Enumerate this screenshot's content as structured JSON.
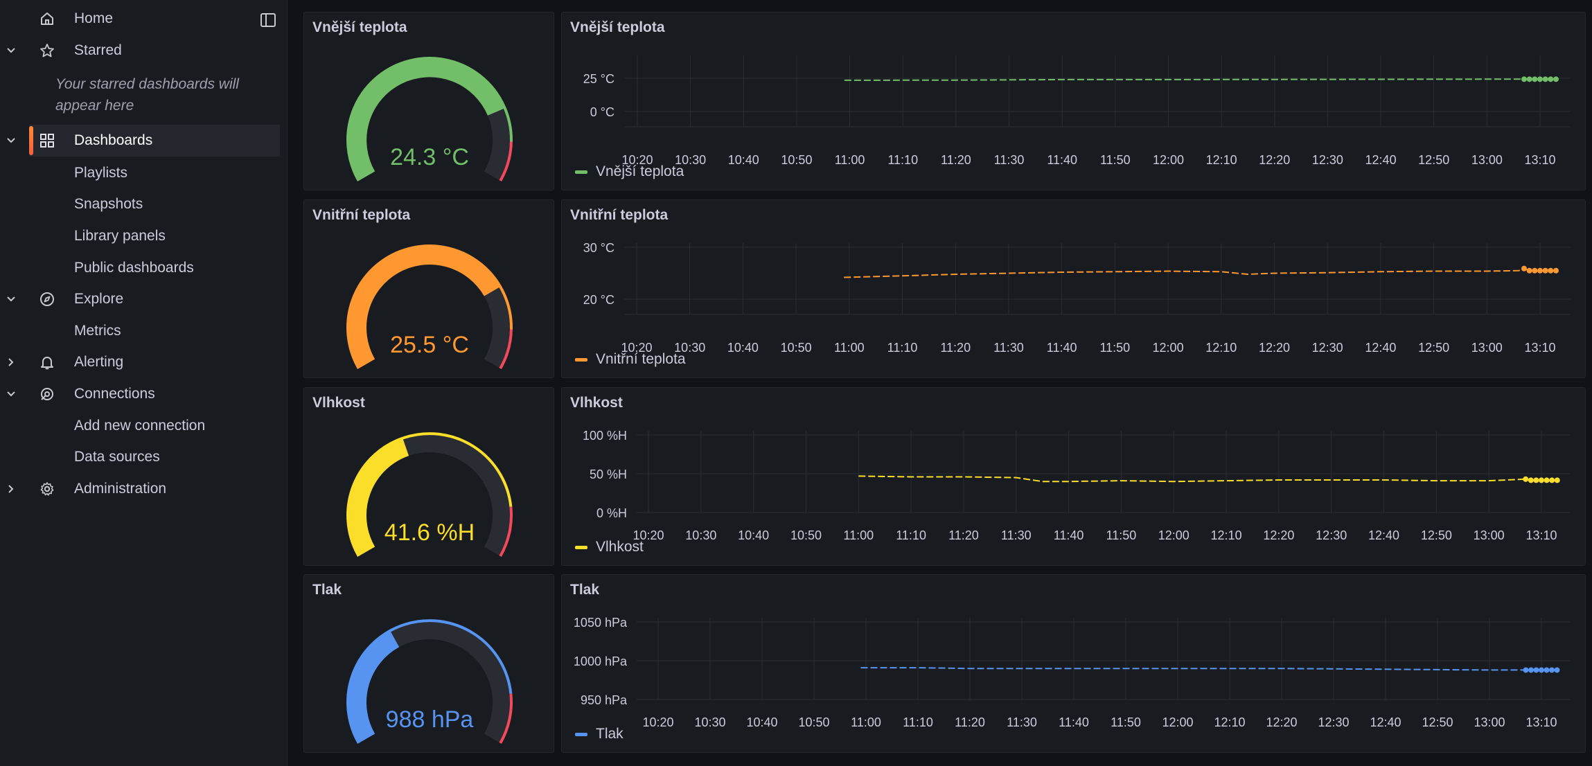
{
  "sidebar": {
    "home": "Home",
    "starred": "Starred",
    "starred_empty": "Your starred dashboards will appear here",
    "dashboards": "Dashboards",
    "playlists": "Playlists",
    "snapshots": "Snapshots",
    "library_panels": "Library panels",
    "public_dashboards": "Public dashboards",
    "explore": "Explore",
    "metrics": "Metrics",
    "alerting": "Alerting",
    "connections": "Connections",
    "add_new_connection": "Add new connection",
    "data_sources": "Data sources",
    "administration": "Administration"
  },
  "rows": [
    {
      "gauge_title": "Vnější teplota",
      "chart_title": "Vnější teplota",
      "legend": "Vnější teplota",
      "color": "#73bf69",
      "value_text": "24.3 °C"
    },
    {
      "gauge_title": "Vnitřní teplota",
      "chart_title": "Vnitřní teplota",
      "legend": "Vnitřní teplota",
      "color": "#ff9830",
      "value_text": "25.5 °C"
    },
    {
      "gauge_title": "Vlhkost",
      "chart_title": "Vlhkost",
      "legend": "Vlhkost",
      "color": "#fade2a",
      "value_text": "41.6 %H"
    },
    {
      "gauge_title": "Tlak",
      "chart_title": "Tlak",
      "legend": "Tlak",
      "color": "#5794f2",
      "value_text": "988 hPa"
    }
  ],
  "chart_data": [
    {
      "type": "gauge",
      "title": "Vnější teplota",
      "value": 24.3,
      "unit": "°C",
      "fill_fraction": 0.78,
      "threshold_ring": [
        {
          "color": "#73bf69",
          "to": 0.88
        },
        {
          "color": "#f2495c",
          "to": 1.0
        }
      ]
    },
    {
      "type": "line",
      "title": "Vnější teplota",
      "x_ticks": [
        "10:20",
        "10:30",
        "10:40",
        "10:50",
        "11:00",
        "11:10",
        "11:20",
        "11:30",
        "11:40",
        "11:50",
        "12:00",
        "12:10",
        "12:20",
        "12:30",
        "12:40",
        "12:50",
        "13:00",
        "13:10"
      ],
      "y_ticks": [
        "25 °C",
        "0 °C"
      ],
      "ylim": [
        -10,
        40
      ],
      "grid": true,
      "legend_position": "bottom-left",
      "series": [
        {
          "name": "Vnější teplota",
          "color": "#73bf69",
          "x": [
            "10:59",
            "11:20",
            "11:40",
            "12:00",
            "12:20",
            "12:40",
            "13:00",
            "13:07",
            "13:08",
            "13:09",
            "13:10",
            "13:11",
            "13:12",
            "13:13"
          ],
          "values": [
            23.5,
            23.6,
            24.0,
            24.0,
            24.1,
            24.2,
            24.3,
            24.3,
            24.3,
            24.3,
            24.3,
            24.3,
            24.3,
            24.3
          ]
        }
      ]
    },
    {
      "type": "gauge",
      "title": "Vnitřní teplota",
      "value": 25.5,
      "unit": "°C",
      "fill_fraction": 0.75,
      "threshold_ring": [
        {
          "color": "#ff9830",
          "to": 0.88
        },
        {
          "color": "#f2495c",
          "to": 1.0
        }
      ]
    },
    {
      "type": "line",
      "title": "Vnitřní teplota",
      "x_ticks": [
        "10:20",
        "10:30",
        "10:40",
        "10:50",
        "11:00",
        "11:10",
        "11:20",
        "11:30",
        "11:40",
        "11:50",
        "12:00",
        "12:10",
        "12:20",
        "12:30",
        "12:40",
        "12:50",
        "13:00",
        "13:10"
      ],
      "y_ticks": [
        "30 °C",
        "20 °C"
      ],
      "ylim": [
        15,
        32
      ],
      "grid": true,
      "legend_position": "bottom-left",
      "series": [
        {
          "name": "Vnitřní teplota",
          "color": "#ff9830",
          "x": [
            "10:59",
            "11:10",
            "11:20",
            "11:30",
            "11:40",
            "11:50",
            "12:00",
            "12:10",
            "12:15",
            "12:20",
            "12:30",
            "12:40",
            "12:50",
            "13:00",
            "13:06",
            "13:07",
            "13:08",
            "13:09",
            "13:10",
            "13:11",
            "13:12",
            "13:13"
          ],
          "values": [
            24.2,
            24.5,
            24.8,
            25.0,
            25.2,
            25.3,
            25.4,
            25.3,
            24.8,
            25.0,
            25.1,
            25.3,
            25.4,
            25.4,
            25.5,
            25.9,
            25.5,
            25.5,
            25.5,
            25.5,
            25.5,
            25.5
          ]
        }
      ]
    },
    {
      "type": "gauge",
      "title": "Vlhkost",
      "value": 41.6,
      "unit": "%H",
      "fill_fraction": 0.42,
      "threshold_ring": [
        {
          "color": "#fade2a",
          "to": 0.85
        },
        {
          "color": "#f2495c",
          "to": 1.0
        }
      ]
    },
    {
      "type": "line",
      "title": "Vlhkost",
      "x_ticks": [
        "10:20",
        "10:30",
        "10:40",
        "10:50",
        "11:00",
        "11:10",
        "11:20",
        "11:30",
        "11:40",
        "11:50",
        "12:00",
        "12:10",
        "12:20",
        "12:30",
        "12:40",
        "12:50",
        "13:00",
        "13:10"
      ],
      "y_ticks": [
        "100 %H",
        "50 %H",
        "0 %H"
      ],
      "ylim": [
        0,
        100
      ],
      "grid": true,
      "legend_position": "bottom-left",
      "series": [
        {
          "name": "Vlhkost",
          "color": "#fade2a",
          "x": [
            "11:00",
            "11:10",
            "11:20",
            "11:30",
            "11:35",
            "11:40",
            "11:50",
            "12:00",
            "12:10",
            "12:20",
            "12:30",
            "12:40",
            "12:50",
            "13:00",
            "13:07",
            "13:08",
            "13:09",
            "13:10",
            "13:11",
            "13:12",
            "13:13"
          ],
          "values": [
            47,
            46,
            46,
            45,
            40,
            40,
            41,
            40,
            41,
            42,
            42,
            42,
            41,
            41,
            43,
            41.6,
            41.6,
            41.6,
            41.6,
            41.6,
            41.6
          ]
        }
      ]
    },
    {
      "type": "gauge",
      "title": "Tlak",
      "value": 988,
      "unit": "hPa",
      "fill_fraction": 0.38,
      "threshold_ring": [
        {
          "color": "#5794f2",
          "to": 0.85
        },
        {
          "color": "#f2495c",
          "to": 1.0
        }
      ]
    },
    {
      "type": "line",
      "title": "Tlak",
      "x_ticks": [
        "10:20",
        "10:30",
        "10:40",
        "10:50",
        "11:00",
        "11:10",
        "11:20",
        "11:30",
        "11:40",
        "11:50",
        "12:00",
        "12:10",
        "12:20",
        "12:30",
        "12:40",
        "12:50",
        "13:00",
        "13:10"
      ],
      "y_ticks": [
        "1050 hPa",
        "1000 hPa",
        "950 hPa"
      ],
      "ylim": [
        950,
        1050
      ],
      "grid": true,
      "legend_position": "bottom-left",
      "series": [
        {
          "name": "Tlak",
          "color": "#5794f2",
          "x": [
            "10:59",
            "11:10",
            "11:20",
            "11:40",
            "12:00",
            "12:20",
            "12:40",
            "13:00",
            "13:07",
            "13:08",
            "13:09",
            "13:10",
            "13:11",
            "13:12",
            "13:13"
          ],
          "values": [
            991,
            991,
            990,
            990,
            990,
            990,
            989,
            988,
            988,
            988,
            988,
            988,
            988,
            988,
            988
          ]
        }
      ]
    }
  ]
}
